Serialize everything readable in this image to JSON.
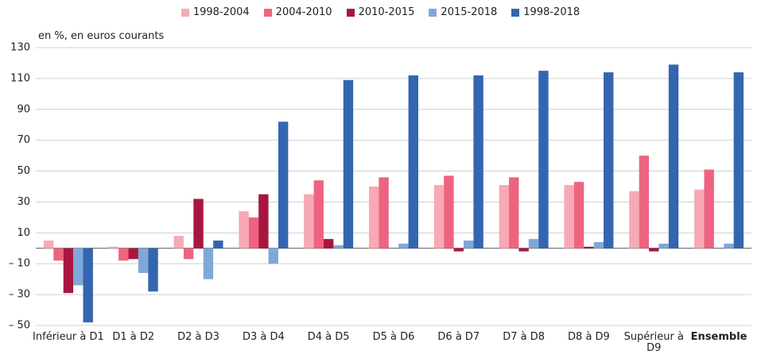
{
  "chart_data": {
    "type": "bar",
    "y_label": "en %, en euros courants",
    "categories": [
      "Inférieur à D1",
      "D1 à D2",
      "D2 à D3",
      "D3 à D4",
      "D4 à D5",
      "D5 à D6",
      "D6 à D7",
      "D7 à D8",
      "D8 à D9",
      "Supérieur à D9",
      "Ensemble"
    ],
    "series": [
      {
        "name": "1998-2004",
        "color": "#f7a9b4",
        "values": [
          5,
          1,
          8,
          24,
          35,
          40,
          41,
          41,
          41,
          37,
          38
        ]
      },
      {
        "name": "2004-2010",
        "color": "#ee6480",
        "values": [
          -8,
          -8,
          -7,
          20,
          44,
          46,
          47,
          46,
          43,
          60,
          51
        ]
      },
      {
        "name": "2010-2015",
        "color": "#a8163f",
        "values": [
          -29,
          -7,
          32,
          35,
          6,
          0,
          -2,
          -2,
          1,
          -2,
          0
        ]
      },
      {
        "name": "2015-2018",
        "color": "#7fa8d8",
        "values": [
          -24,
          -16,
          -20,
          -10,
          2,
          3,
          5,
          6,
          4,
          3,
          3
        ]
      },
      {
        "name": "1998-2018",
        "color": "#3465b0",
        "values": [
          -48,
          -28,
          5,
          82,
          109,
          112,
          112,
          115,
          114,
          119,
          114
        ]
      }
    ],
    "ylim": [
      -50,
      130
    ],
    "yticks": [
      {
        "value": -50,
        "label": "– 50"
      },
      {
        "value": -30,
        "label": "– 30"
      },
      {
        "value": -10,
        "label": "– 10"
      },
      10,
      30,
      50,
      70,
      90,
      110,
      130
    ],
    "grid": true
  }
}
